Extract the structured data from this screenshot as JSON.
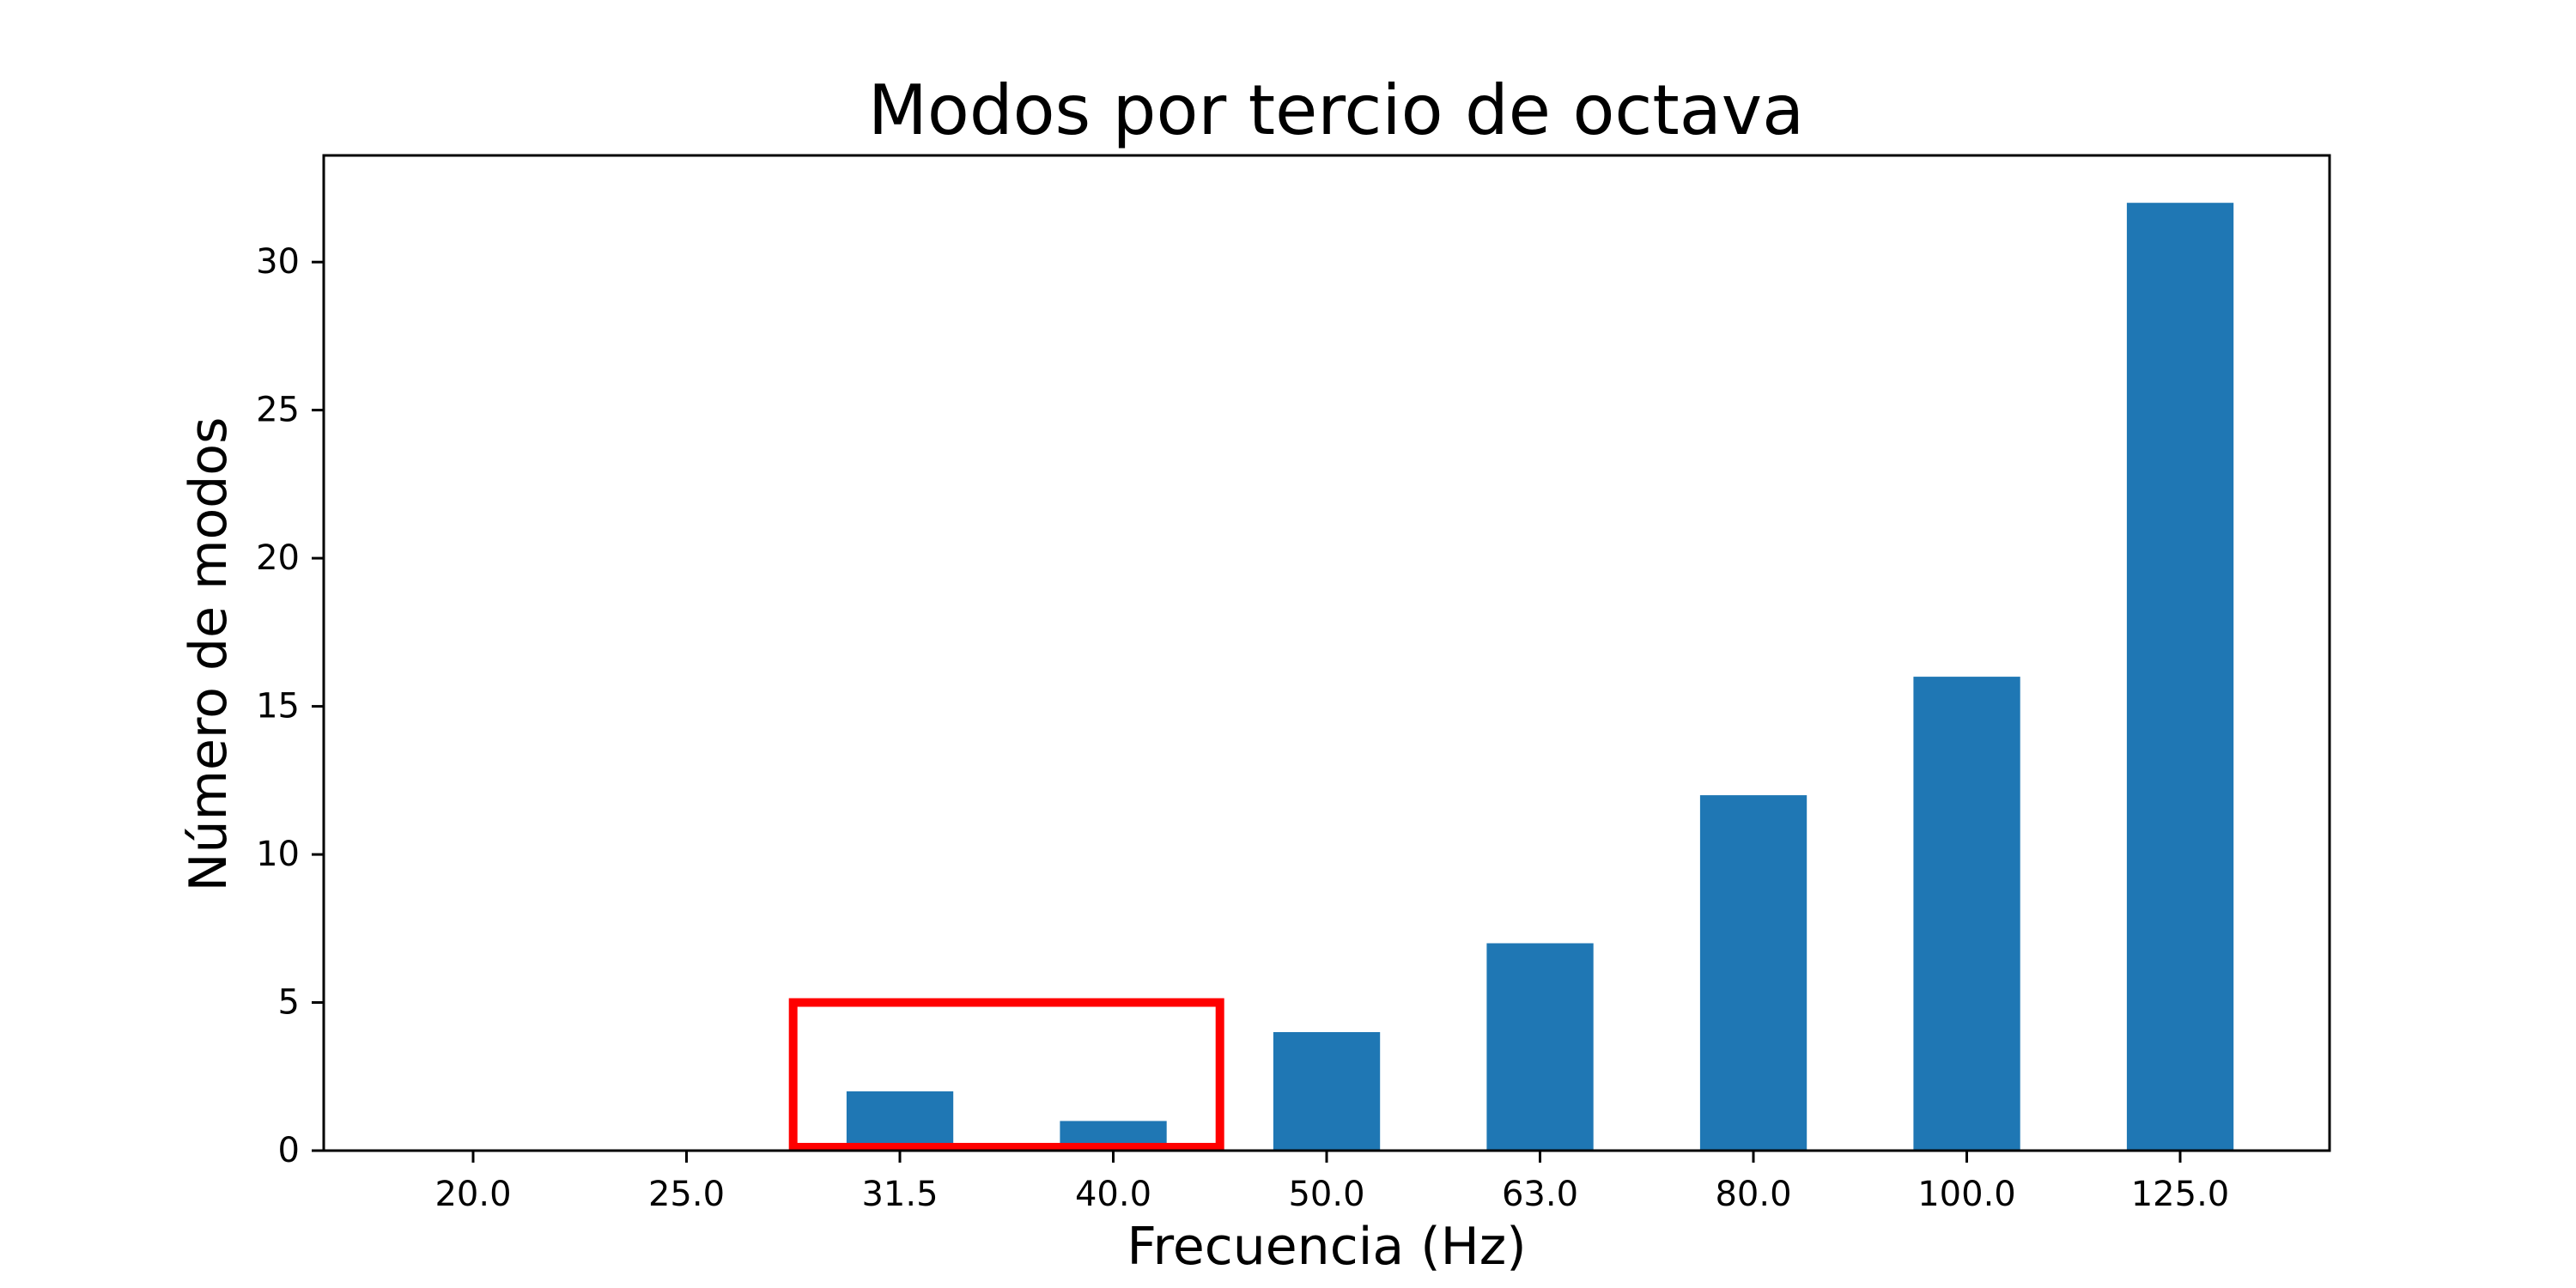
{
  "chart_data": {
    "type": "bar",
    "title": "Modos por tercio de octava",
    "xlabel": "Frecuencia (Hz)",
    "ylabel": "Número de modos",
    "categories": [
      "20.0",
      "25.0",
      "31.5",
      "40.0",
      "50.0",
      "63.0",
      "80.0",
      "100.0",
      "125.0"
    ],
    "values": [
      0,
      0,
      2,
      1,
      4,
      7,
      12,
      16,
      32
    ],
    "ylim": [
      0,
      33.6
    ],
    "yticks": [
      "0",
      "5",
      "10",
      "15",
      "20",
      "25",
      "30"
    ],
    "grid": false,
    "bar_color": "#1f77b4",
    "highlight": {
      "categories": [
        "31.5",
        "40.0"
      ],
      "y_top": 5,
      "color": "#ff0000"
    }
  }
}
